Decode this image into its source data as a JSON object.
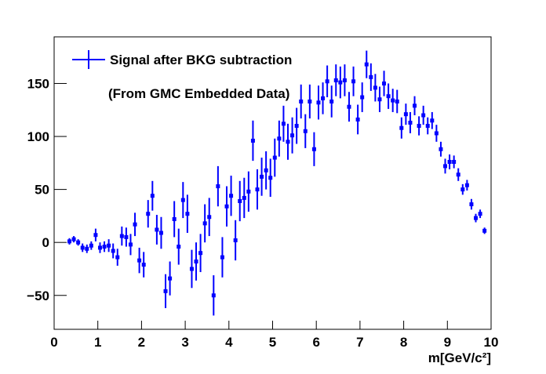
{
  "chart_data": {
    "type": "errorbar",
    "annotation": "(From GMC Embedded Data)",
    "x_label": "m[GeV/c²]",
    "xlim": [
      0,
      10
    ],
    "ylim": [
      -82,
      194
    ],
    "xticks": [
      0,
      1,
      2,
      3,
      4,
      5,
      6,
      7,
      8,
      9,
      10
    ],
    "yticks": [
      {
        "value": -50,
        "label": "−50"
      },
      0,
      50,
      100,
      150
    ],
    "legend": "top-left",
    "series": [
      {
        "name": "Signal after  BKG subtraction",
        "color": "#0000ff",
        "x": [
          0.35,
          0.45,
          0.55,
          0.65,
          0.75,
          0.85,
          0.95,
          1.05,
          1.15,
          1.25,
          1.35,
          1.45,
          1.55,
          1.65,
          1.75,
          1.85,
          1.95,
          2.05,
          2.15,
          2.25,
          2.35,
          2.45,
          2.55,
          2.65,
          2.75,
          2.85,
          2.95,
          3.05,
          3.15,
          3.25,
          3.35,
          3.45,
          3.55,
          3.65,
          3.75,
          3.85,
          3.95,
          4.05,
          4.15,
          4.25,
          4.35,
          4.45,
          4.55,
          4.65,
          4.75,
          4.85,
          4.95,
          5.05,
          5.15,
          5.25,
          5.35,
          5.45,
          5.55,
          5.65,
          5.75,
          5.85,
          5.95,
          6.05,
          6.15,
          6.25,
          6.35,
          6.45,
          6.55,
          6.65,
          6.75,
          6.85,
          6.95,
          7.05,
          7.15,
          7.25,
          7.35,
          7.45,
          7.55,
          7.65,
          7.75,
          7.85,
          7.95,
          8.05,
          8.15,
          8.25,
          8.35,
          8.45,
          8.55,
          8.65,
          8.75,
          8.85,
          8.95,
          9.05,
          9.15,
          9.25,
          9.35,
          9.45,
          9.55,
          9.65,
          9.75,
          9.85
        ],
        "values": [
          1,
          3,
          0,
          -5,
          -6,
          -3,
          7,
          -5,
          -4,
          -3,
          -8,
          -14,
          6,
          5,
          -2,
          17,
          -17,
          -21,
          27,
          44,
          12,
          9,
          -46,
          -34,
          22,
          -4,
          40,
          27,
          -25,
          -18,
          -10,
          18,
          24,
          -50,
          53,
          -14,
          34,
          44,
          2,
          39,
          42,
          48,
          96,
          50,
          62,
          68,
          61,
          80,
          98,
          112,
          95,
          101,
          110,
          133,
          105,
          133,
          88,
          132,
          136,
          152,
          133,
          153,
          151,
          153,
          128,
          152,
          116,
          137,
          168,
          156,
          146,
          135,
          150,
          138,
          134,
          133,
          108,
          121,
          113,
          129,
          110,
          120,
          110,
          115,
          103,
          88,
          72,
          76,
          76,
          64,
          50,
          54,
          36,
          23,
          27,
          11
        ],
        "errors": [
          3,
          3,
          3,
          4,
          4,
          4,
          6,
          5,
          5,
          6,
          7,
          8,
          9,
          9,
          10,
          11,
          12,
          12,
          13,
          14,
          14,
          15,
          16,
          16,
          17,
          17,
          17,
          18,
          18,
          18,
          18,
          18,
          18,
          19,
          19,
          19,
          19,
          19,
          19,
          19,
          19,
          19,
          19,
          19,
          18,
          18,
          18,
          18,
          17,
          17,
          17,
          17,
          17,
          16,
          16,
          16,
          16,
          16,
          15,
          15,
          15,
          15,
          15,
          15,
          14,
          14,
          14,
          14,
          13,
          13,
          13,
          12,
          12,
          12,
          11,
          11,
          10,
          10,
          10,
          9,
          9,
          9,
          8,
          8,
          8,
          7,
          7,
          7,
          6,
          6,
          5,
          5,
          5,
          4,
          4,
          3
        ]
      }
    ]
  }
}
